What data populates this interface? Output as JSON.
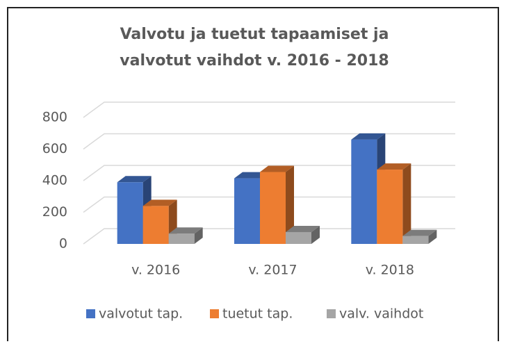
{
  "chart_data": {
    "type": "bar3d",
    "title": [
      "Valvotu ja tuetut tapaamiset ja",
      "valvotut vaihdot v. 2016 - 2018"
    ],
    "categories": [
      "v. 2016",
      "v. 2017",
      "v. 2018"
    ],
    "series": [
      {
        "name": "valvotut tap.",
        "color": "#4472c4",
        "values": [
          390,
          415,
          660
        ]
      },
      {
        "name": "tuetut tap.",
        "color": "#ed7d31",
        "values": [
          240,
          455,
          470
        ]
      },
      {
        "name": "valv. vaihdot",
        "color": "#a5a5a5",
        "values": [
          65,
          75,
          50
        ]
      }
    ],
    "ylim": [
      0,
      800
    ],
    "yticks": [
      0,
      200,
      400,
      600,
      800
    ],
    "grid": true,
    "legend": "bottom"
  }
}
